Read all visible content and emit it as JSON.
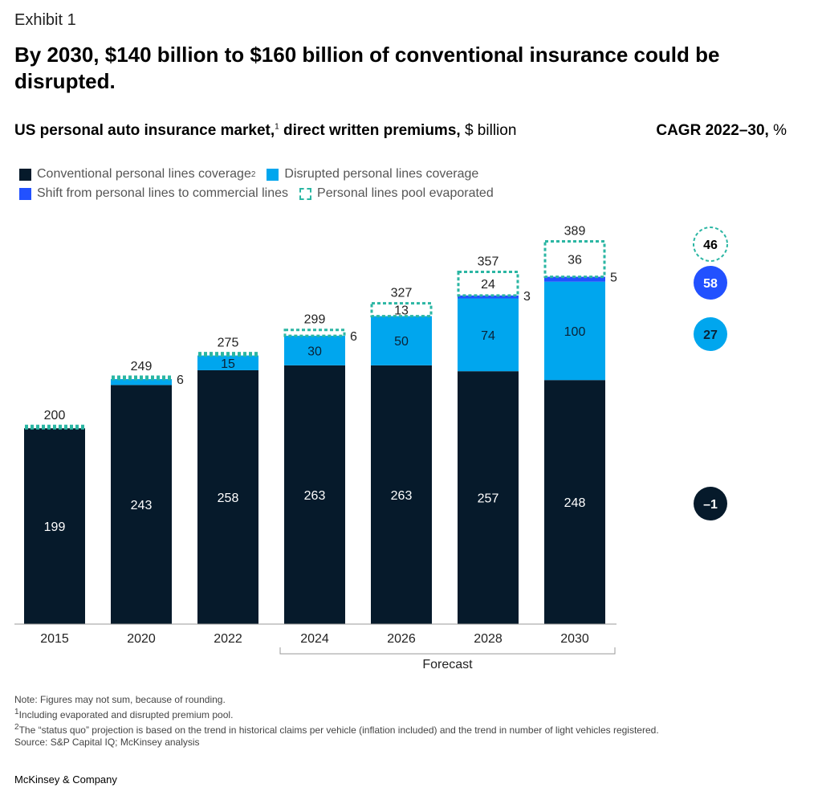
{
  "header": {
    "exhibit": "Exhibit 1",
    "title": "By 2030, $140 billion to $160 billion of conventional insurance could be disrupted.",
    "subtitle_bold": "US personal auto insurance market,",
    "subtitle_sup": "1",
    "subtitle_bold2": " direct written premiums,",
    "subtitle_unit": " $ billion",
    "cagr_bold": "CAGR 2022–30,",
    "cagr_unit": " %"
  },
  "legend": {
    "conventional": "Conventional personal lines coverage",
    "conventional_sup": "2",
    "disrupted": "Disrupted personal lines coverage",
    "shift": "Shift from personal lines to commercial lines",
    "evaporated": "Personal lines pool evaporated"
  },
  "colors": {
    "conventional": "#061a2b",
    "disrupted": "#00a6ee",
    "shift": "#2251ff",
    "evaporated": "#2bb6a3"
  },
  "chart_data": {
    "type": "bar",
    "stacked": true,
    "categories": [
      "2015",
      "2020",
      "2022",
      "2024",
      "2026",
      "2028",
      "2030"
    ],
    "series": [
      {
        "name": "Conventional personal lines coverage",
        "values": [
          199,
          243,
          258,
          263,
          263,
          257,
          248
        ]
      },
      {
        "name": "Disrupted personal lines coverage",
        "values": [
          0,
          6,
          15,
          30,
          50,
          74,
          100
        ]
      },
      {
        "name": "Shift from personal lines to commercial lines",
        "values": [
          0,
          0,
          0,
          0,
          0,
          3,
          5
        ]
      },
      {
        "name": "Personal lines pool evaporated",
        "values": [
          1,
          0,
          2,
          6,
          13,
          24,
          36
        ]
      }
    ],
    "totals": [
      200,
      249,
      275,
      299,
      327,
      357,
      389
    ],
    "labels": {
      "conventional": [
        "199",
        "243",
        "258",
        "263",
        "263",
        "257",
        "248"
      ],
      "disrupted": [
        "",
        "",
        "15",
        "30",
        "50",
        "74",
        "100"
      ],
      "shift": [
        "",
        "",
        "",
        "",
        "",
        "",
        ""
      ],
      "evaporated": [
        "",
        "",
        "",
        "",
        "13",
        "24",
        "36"
      ],
      "side": [
        "",
        "6",
        "",
        "6",
        "",
        "3",
        "5"
      ]
    },
    "forecast_label": "Forecast",
    "forecast_range": [
      "2024",
      "2030"
    ],
    "cagr": [
      {
        "value": "46",
        "series": "Personal lines pool evaporated",
        "style": "dashed"
      },
      {
        "value": "58",
        "series": "Shift from personal lines to commercial lines",
        "style": "blue"
      },
      {
        "value": "27",
        "series": "Disrupted personal lines coverage",
        "style": "light"
      },
      {
        "value": "–1",
        "series": "Conventional personal lines coverage",
        "style": "dark"
      }
    ]
  },
  "notes": {
    "note": "Note: Figures may not sum, because of rounding.",
    "fn1": "Including evaporated and disrupted premium pool.",
    "fn1_sup": "1",
    "fn2": "The “status quo” projection is based on the trend in historical claims per vehicle (inflation included) and the trend in number of light vehicles registered.",
    "fn2_sup": "2",
    "source": "Source: S&P Capital IQ; McKinsey analysis"
  },
  "brand": "McKinsey & Company"
}
